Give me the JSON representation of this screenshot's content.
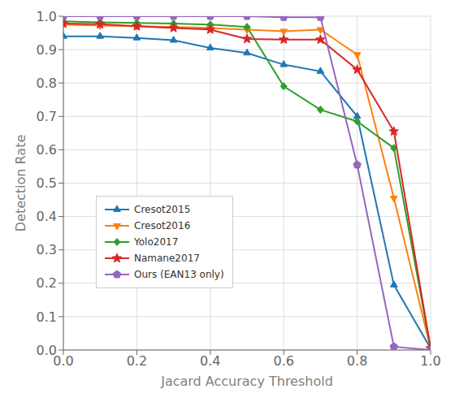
{
  "chart_data": {
    "type": "line",
    "xlabel": "Jacard Accuracy Threshold",
    "ylabel": "Detection Rate",
    "x": [
      0.0,
      0.1,
      0.2,
      0.3,
      0.4,
      0.5,
      0.6,
      0.7,
      0.8,
      0.9,
      1.0
    ],
    "series": [
      {
        "name": "Cresot2015",
        "color": "#1f77b4",
        "marker": "triangle-up",
        "values": [
          0.94,
          0.94,
          0.935,
          0.928,
          0.905,
          0.89,
          0.855,
          0.835,
          0.7,
          0.195,
          0.005
        ]
      },
      {
        "name": "Cresot2016",
        "color": "#ff7f0e",
        "marker": "triangle-down",
        "values": [
          0.975,
          0.972,
          0.97,
          0.968,
          0.965,
          0.96,
          0.955,
          0.96,
          0.885,
          0.455,
          0.005
        ]
      },
      {
        "name": "Yolo2017",
        "color": "#2ca02c",
        "marker": "diamond",
        "values": [
          0.985,
          0.982,
          0.98,
          0.978,
          0.975,
          0.968,
          0.79,
          0.72,
          0.685,
          0.605,
          0.005
        ]
      },
      {
        "name": "Namane2017",
        "color": "#d62728",
        "marker": "star",
        "values": [
          0.978,
          0.976,
          0.97,
          0.965,
          0.96,
          0.932,
          0.93,
          0.93,
          0.84,
          0.655,
          0.005
        ]
      },
      {
        "name": "Ours (EAN13 only)",
        "color": "#9467bd",
        "marker": "pentagon",
        "values": [
          1.0,
          1.0,
          1.0,
          1.0,
          1.0,
          1.0,
          0.997,
          0.997,
          0.555,
          0.01,
          0.0
        ]
      }
    ],
    "xlim": [
      0.0,
      1.0
    ],
    "ylim": [
      0.0,
      1.0
    ],
    "xticks": [
      {
        "value": 0.0,
        "label": "0.0"
      },
      {
        "value": 0.2,
        "label": "0.2"
      },
      {
        "value": 0.4,
        "label": "0.4"
      },
      {
        "value": 0.6,
        "label": "0.6"
      },
      {
        "value": 0.8,
        "label": "0.8"
      },
      {
        "value": 1.0,
        "label": "1.0"
      }
    ],
    "yticks": [
      {
        "value": 0.0,
        "label": "0.0"
      },
      {
        "value": 0.1,
        "label": "0.1"
      },
      {
        "value": 0.2,
        "label": "0.2"
      },
      {
        "value": 0.3,
        "label": "0.3"
      },
      {
        "value": 0.4,
        "label": "0.4"
      },
      {
        "value": 0.5,
        "label": "0.5"
      },
      {
        "value": 0.6,
        "label": "0.6"
      },
      {
        "value": 0.7,
        "label": "0.7"
      },
      {
        "value": 0.8,
        "label": "0.8"
      },
      {
        "value": 0.9,
        "label": "0.9"
      },
      {
        "value": 1.0,
        "label": "1.0"
      }
    ],
    "grid": true,
    "legend": "lower left"
  }
}
